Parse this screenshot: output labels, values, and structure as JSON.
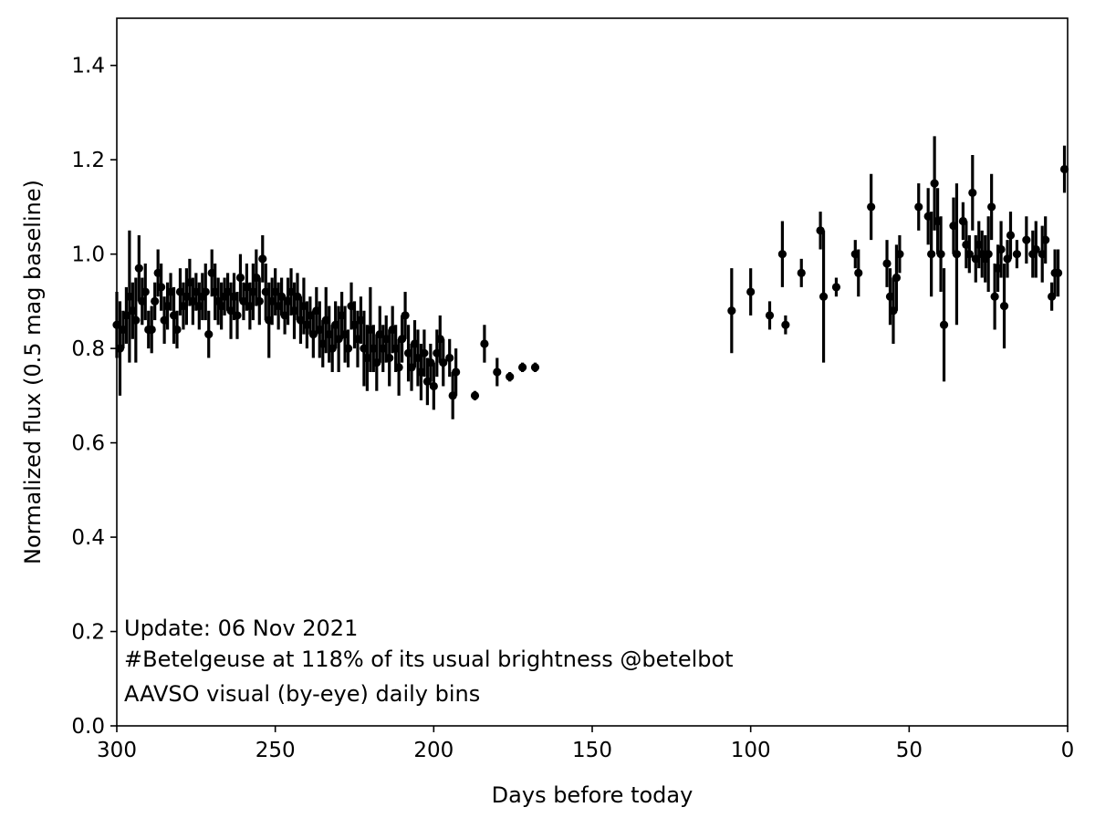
{
  "chart_data": {
    "type": "scatter",
    "title": "",
    "xlabel": "Days before today",
    "ylabel": "Normalized flux (0.5 mag baseline)",
    "xlim": [
      300,
      0
    ],
    "ylim": [
      0,
      1.5
    ],
    "x_ticks": [
      300,
      250,
      200,
      150,
      100,
      50,
      0
    ],
    "y_ticks": [
      0.0,
      0.2,
      0.4,
      0.6,
      0.8,
      1.0,
      1.2,
      1.4
    ],
    "x_tick_labels": [
      "300",
      "250",
      "200",
      "150",
      "100",
      "50",
      "0"
    ],
    "y_tick_labels": [
      "0.0",
      "0.2",
      "0.4",
      "0.6",
      "0.8",
      "1.0",
      "1.2",
      "1.4"
    ],
    "grid": false,
    "legend": "none",
    "marker_color": "#000000",
    "annotations": [
      "Update: 06 Nov 2021",
      "#Betelgeuse at 118% of its usual brightness @betelbot",
      "AAVSO visual (by-eye) daily bins"
    ],
    "series": [
      {
        "values_format": "[x_days_before_today, normalized_flux, error]",
        "points": [
          [
            300,
            0.85,
            0.07
          ],
          [
            299,
            0.8,
            0.1
          ],
          [
            298,
            0.84,
            0.04
          ],
          [
            297,
            0.87,
            0.06
          ],
          [
            296,
            0.91,
            0.14
          ],
          [
            295,
            0.88,
            0.06
          ],
          [
            294,
            0.86,
            0.09
          ],
          [
            293,
            0.97,
            0.07
          ],
          [
            292,
            0.9,
            0.05
          ],
          [
            291,
            0.92,
            0.06
          ],
          [
            290,
            0.84,
            0.04
          ],
          [
            289,
            0.84,
            0.05
          ],
          [
            288,
            0.9,
            0.04
          ],
          [
            287,
            0.96,
            0.05
          ],
          [
            286,
            0.93,
            0.05
          ],
          [
            285,
            0.86,
            0.05
          ],
          [
            284,
            0.89,
            0.05
          ],
          [
            283,
            0.92,
            0.04
          ],
          [
            282,
            0.87,
            0.06
          ],
          [
            281,
            0.84,
            0.04
          ],
          [
            280,
            0.92,
            0.05
          ],
          [
            279,
            0.89,
            0.05
          ],
          [
            278,
            0.91,
            0.06
          ],
          [
            277,
            0.94,
            0.05
          ],
          [
            276,
            0.9,
            0.05
          ],
          [
            275,
            0.92,
            0.04
          ],
          [
            274,
            0.89,
            0.05
          ],
          [
            273,
            0.91,
            0.05
          ],
          [
            272,
            0.92,
            0.06
          ],
          [
            271,
            0.83,
            0.05
          ],
          [
            270,
            0.96,
            0.05
          ],
          [
            269,
            0.92,
            0.06
          ],
          [
            268,
            0.9,
            0.05
          ],
          [
            267,
            0.89,
            0.05
          ],
          [
            266,
            0.91,
            0.04
          ],
          [
            265,
            0.92,
            0.04
          ],
          [
            264,
            0.88,
            0.06
          ],
          [
            263,
            0.91,
            0.05
          ],
          [
            262,
            0.87,
            0.05
          ],
          [
            261,
            0.95,
            0.05
          ],
          [
            260,
            0.9,
            0.04
          ],
          [
            259,
            0.93,
            0.05
          ],
          [
            258,
            0.89,
            0.05
          ],
          [
            257,
            0.92,
            0.06
          ],
          [
            256,
            0.95,
            0.06
          ],
          [
            255,
            0.9,
            0.05
          ],
          [
            254,
            0.99,
            0.05
          ],
          [
            253,
            0.92,
            0.06
          ],
          [
            252,
            0.86,
            0.08
          ],
          [
            251,
            0.9,
            0.05
          ],
          [
            250,
            0.92,
            0.05
          ],
          [
            249,
            0.89,
            0.05
          ],
          [
            248,
            0.91,
            0.04
          ],
          [
            247,
            0.87,
            0.04
          ],
          [
            246,
            0.9,
            0.05
          ],
          [
            245,
            0.92,
            0.05
          ],
          [
            244,
            0.88,
            0.06
          ],
          [
            243,
            0.91,
            0.05
          ],
          [
            242,
            0.86,
            0.05
          ],
          [
            241,
            0.89,
            0.06
          ],
          [
            240,
            0.85,
            0.05
          ],
          [
            239,
            0.87,
            0.04
          ],
          [
            238,
            0.83,
            0.05
          ],
          [
            237,
            0.88,
            0.05
          ],
          [
            236,
            0.84,
            0.06
          ],
          [
            235,
            0.81,
            0.05
          ],
          [
            234,
            0.86,
            0.07
          ],
          [
            233,
            0.83,
            0.06
          ],
          [
            232,
            0.8,
            0.05
          ],
          [
            231,
            0.85,
            0.05
          ],
          [
            230,
            0.82,
            0.07
          ],
          [
            229,
            0.87,
            0.05
          ],
          [
            228,
            0.83,
            0.06
          ],
          [
            227,
            0.8,
            0.04
          ],
          [
            226,
            0.89,
            0.05
          ],
          [
            225,
            0.85,
            0.05
          ],
          [
            224,
            0.82,
            0.06
          ],
          [
            223,
            0.86,
            0.05
          ],
          [
            222,
            0.8,
            0.08
          ],
          [
            221,
            0.78,
            0.07
          ],
          [
            220,
            0.84,
            0.09
          ],
          [
            219,
            0.8,
            0.05
          ],
          [
            218,
            0.77,
            0.06
          ],
          [
            217,
            0.83,
            0.06
          ],
          [
            216,
            0.8,
            0.05
          ],
          [
            215,
            0.82,
            0.05
          ],
          [
            214,
            0.78,
            0.06
          ],
          [
            213,
            0.84,
            0.05
          ],
          [
            212,
            0.8,
            0.05
          ],
          [
            211,
            0.76,
            0.06
          ],
          [
            210,
            0.82,
            0.05
          ],
          [
            209,
            0.87,
            0.05
          ],
          [
            208,
            0.79,
            0.06
          ],
          [
            207,
            0.76,
            0.05
          ],
          [
            206,
            0.81,
            0.05
          ],
          [
            205,
            0.78,
            0.06
          ],
          [
            204,
            0.75,
            0.06
          ],
          [
            203,
            0.79,
            0.05
          ],
          [
            202,
            0.73,
            0.05
          ],
          [
            201,
            0.77,
            0.04
          ],
          [
            200,
            0.72,
            0.05
          ],
          [
            199,
            0.79,
            0.05
          ],
          [
            198,
            0.82,
            0.05
          ],
          [
            197,
            0.77,
            0.05
          ],
          [
            195,
            0.78,
            0.04
          ],
          [
            194,
            0.7,
            0.05
          ],
          [
            193,
            0.75,
            0.05
          ],
          [
            187,
            0.7,
            0.01
          ],
          [
            184,
            0.81,
            0.04
          ],
          [
            180,
            0.75,
            0.03
          ],
          [
            176,
            0.74,
            0.01
          ],
          [
            172,
            0.76,
            0.01
          ],
          [
            168,
            0.76,
            0.01
          ],
          [
            106,
            0.88,
            0.09
          ],
          [
            100,
            0.92,
            0.05
          ],
          [
            94,
            0.87,
            0.03
          ],
          [
            90,
            1.0,
            0.07
          ],
          [
            89,
            0.85,
            0.02
          ],
          [
            84,
            0.96,
            0.03
          ],
          [
            78,
            1.05,
            0.04
          ],
          [
            77,
            0.91,
            0.14
          ],
          [
            73,
            0.93,
            0.02
          ],
          [
            67,
            1.0,
            0.03
          ],
          [
            66,
            0.96,
            0.05
          ],
          [
            62,
            1.1,
            0.07
          ],
          [
            57,
            0.98,
            0.05
          ],
          [
            56,
            0.91,
            0.06
          ],
          [
            55,
            0.88,
            0.07
          ],
          [
            54,
            0.95,
            0.07
          ],
          [
            53,
            1.0,
            0.04
          ],
          [
            47,
            1.1,
            0.05
          ],
          [
            44,
            1.08,
            0.06
          ],
          [
            43,
            1.0,
            0.09
          ],
          [
            42,
            1.15,
            0.1
          ],
          [
            41,
            1.07,
            0.07
          ],
          [
            40,
            1.0,
            0.08
          ],
          [
            39,
            0.85,
            0.12
          ],
          [
            36,
            1.06,
            0.06
          ],
          [
            35,
            1.0,
            0.15
          ],
          [
            33,
            1.07,
            0.04
          ],
          [
            32,
            1.02,
            0.05
          ],
          [
            31,
            1.0,
            0.04
          ],
          [
            30,
            1.13,
            0.08
          ],
          [
            29,
            0.99,
            0.05
          ],
          [
            28,
            1.02,
            0.05
          ],
          [
            27,
            1.0,
            0.05
          ],
          [
            26,
            0.99,
            0.05
          ],
          [
            25,
            1.0,
            0.08
          ],
          [
            24,
            1.1,
            0.07
          ],
          [
            23,
            0.91,
            0.07
          ],
          [
            22,
            0.97,
            0.05
          ],
          [
            21,
            1.01,
            0.06
          ],
          [
            20,
            0.89,
            0.09
          ],
          [
            19,
            0.99,
            0.04
          ],
          [
            18,
            1.04,
            0.05
          ],
          [
            16,
            1.0,
            0.03
          ],
          [
            13,
            1.03,
            0.05
          ],
          [
            11,
            1.0,
            0.05
          ],
          [
            10,
            1.01,
            0.06
          ],
          [
            8,
            1.0,
            0.06
          ],
          [
            7,
            1.03,
            0.05
          ],
          [
            5,
            0.91,
            0.03
          ],
          [
            4,
            0.96,
            0.05
          ],
          [
            3,
            0.96,
            0.05
          ],
          [
            1,
            1.18,
            0.05
          ]
        ]
      }
    ]
  }
}
